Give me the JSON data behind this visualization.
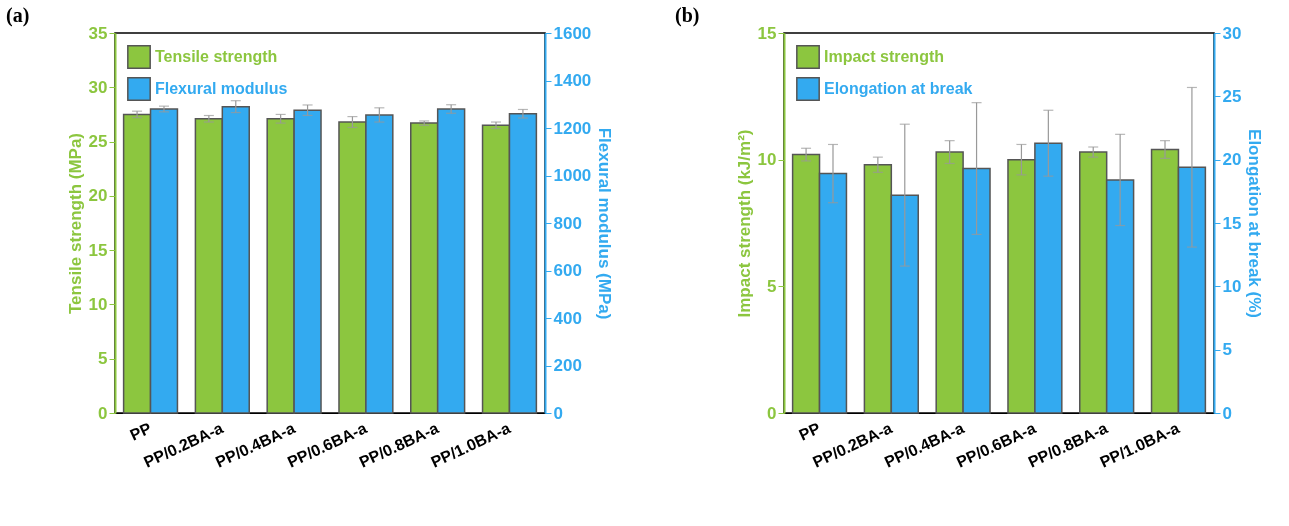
{
  "chart_data": [
    {
      "type": "bar",
      "title": "(a)",
      "categories": [
        "PP",
        "PP/0.2BA-a",
        "PP/0.4BA-a",
        "PP/0.6BA-a",
        "PP/0.8BA-a",
        "PP/1.0BA-a"
      ],
      "ylabel": "Tensile strength (MPa)",
      "y2label": "Flexural modulus (MPa)",
      "ylim": [
        0,
        35
      ],
      "yticks": [
        0,
        5,
        10,
        15,
        20,
        25,
        30,
        35
      ],
      "y2lim": [
        0,
        1600
      ],
      "y2ticks": [
        0,
        200,
        400,
        600,
        800,
        1000,
        1200,
        1400,
        1600
      ],
      "legend": "top left",
      "grid": false,
      "series": [
        {
          "name": "Tensile strength",
          "color": "#8cc63f",
          "values": [
            27.5,
            27.1,
            27.1,
            26.8,
            26.7,
            26.5
          ],
          "errors": [
            0.3,
            0.3,
            0.4,
            0.5,
            0.2,
            0.3
          ]
        },
        {
          "name": "Flexural modulus",
          "color": "#33aaf0",
          "values": [
            1280,
            1290,
            1275,
            1255,
            1280,
            1260
          ],
          "errors": [
            12,
            25,
            22,
            30,
            18,
            18
          ],
          "axis": "y2"
        }
      ]
    },
    {
      "type": "bar",
      "title": "(b)",
      "categories": [
        "PP",
        "PP/0.2BA-a",
        "PP/0.4BA-a",
        "PP/0.6BA-a",
        "PP/0.8BA-a",
        "PP/1.0BA-a"
      ],
      "ylabel": "Impact strength (kJ/m²)",
      "y2label": "Elongation at break (%)",
      "ylim": [
        0,
        15
      ],
      "yticks": [
        0,
        5,
        10,
        15
      ],
      "y2lim": [
        0,
        30
      ],
      "y2ticks": [
        0,
        5,
        10,
        15,
        20,
        25,
        30
      ],
      "legend": "top left",
      "grid": false,
      "series": [
        {
          "name": "Impact strength",
          "color": "#8cc63f",
          "values": [
            10.2,
            9.8,
            10.3,
            10.0,
            10.3,
            10.4
          ],
          "errors": [
            0.25,
            0.3,
            0.45,
            0.6,
            0.2,
            0.35
          ]
        },
        {
          "name": "Elongation at break",
          "color": "#33aaf0",
          "values": [
            18.9,
            17.2,
            19.3,
            21.3,
            18.4,
            19.4
          ],
          "errors": [
            2.3,
            5.6,
            5.2,
            2.6,
            3.6,
            6.3
          ],
          "axis": "y2"
        }
      ]
    }
  ]
}
